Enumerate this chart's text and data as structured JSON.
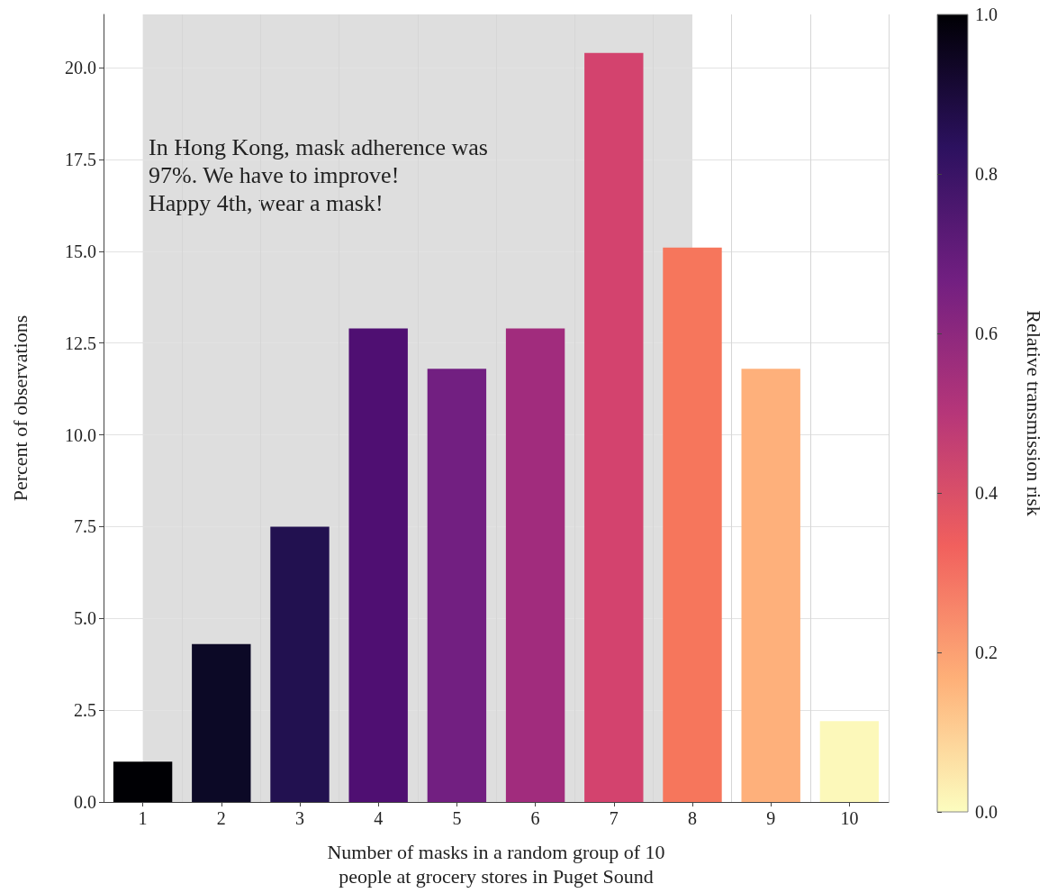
{
  "chart_data": {
    "type": "bar",
    "categories": [
      "1",
      "2",
      "3",
      "4",
      "5",
      "6",
      "7",
      "8",
      "9",
      "10"
    ],
    "values": [
      1.1,
      4.3,
      7.5,
      12.9,
      11.8,
      12.9,
      20.4,
      15.1,
      11.8,
      2.2
    ],
    "colors": [
      "#000004",
      "#0c0926",
      "#221150",
      "#4f0f72",
      "#721f81",
      "#a12c7d",
      "#d3436e",
      "#f6765c",
      "#feb07b",
      "#fcf8ba"
    ],
    "xlabel": "Number of masks in a random group of 10\npeople at grocery stores in Puget Sound",
    "ylabel": "Percent of observations",
    "clabel": "Relative transmission risk",
    "clim": [
      0,
      1
    ],
    "cticks": [
      {
        "value": 0,
        "label": "0.0"
      },
      {
        "value": 0.2,
        "label": "0.2"
      },
      {
        "value": 0.4,
        "label": "0.4"
      },
      {
        "value": 0.6,
        "label": "0.6"
      },
      {
        "value": 0.8,
        "label": "0.8"
      },
      {
        "value": 1,
        "label": "1.0"
      }
    ],
    "ylim": [
      0,
      21.45
    ],
    "yticks": [
      {
        "value": 0,
        "label": "0.0"
      },
      {
        "value": 2.5,
        "label": "2.5"
      },
      {
        "value": 5,
        "label": "5.0"
      },
      {
        "value": 7.5,
        "label": "7.5"
      },
      {
        "value": 10,
        "label": "10.0"
      },
      {
        "value": 12.5,
        "label": "12.5"
      },
      {
        "value": 15,
        "label": "15.0"
      },
      {
        "value": 17.5,
        "label": "17.5"
      },
      {
        "value": 20,
        "label": "20.0"
      }
    ],
    "bands": [
      {
        "axis": "x",
        "from": "1",
        "to": "8",
        "color": "#dedede"
      }
    ],
    "annotations": [
      "In Hong Kong, mask adherence was\n97%. We have to improve!\nHappy 4th, wear a mask!"
    ],
    "grid": true
  }
}
